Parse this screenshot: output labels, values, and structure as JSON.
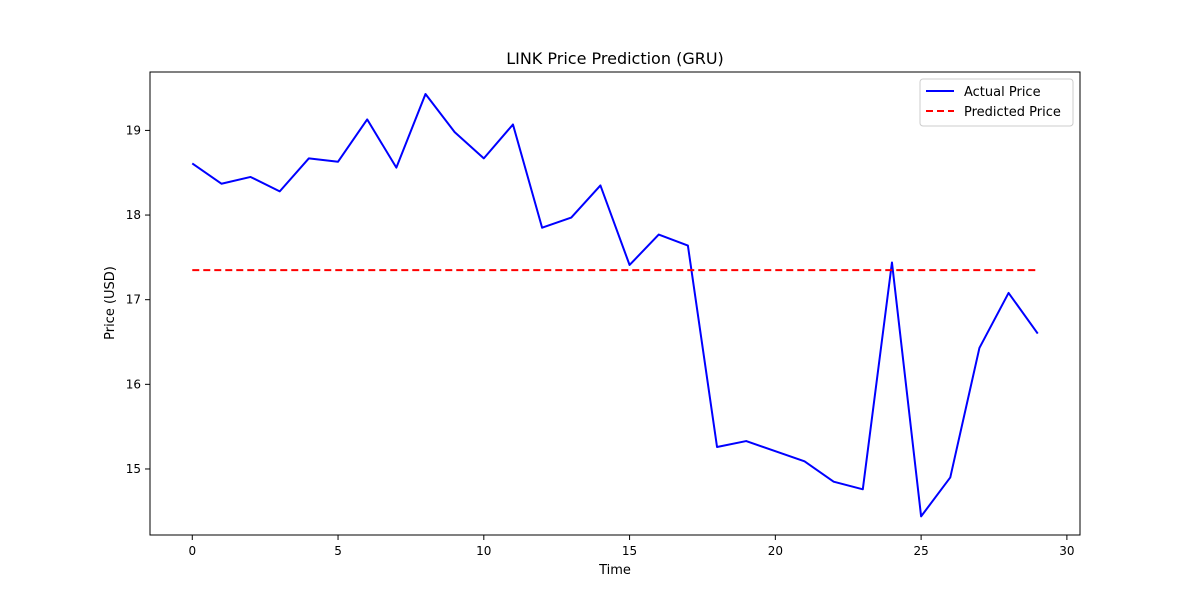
{
  "chart_data": {
    "type": "line",
    "title": "LINK Price Prediction (GRU)",
    "xlabel": "Time",
    "ylabel": "Price (USD)",
    "xlim": [
      -1.45,
      30.45
    ],
    "ylim": [
      14.22,
      19.69
    ],
    "xticks": [
      0,
      5,
      10,
      15,
      20,
      25,
      30
    ],
    "yticks": [
      15,
      16,
      17,
      18,
      19
    ],
    "grid": false,
    "legend_position": "top-right",
    "series": [
      {
        "name": "Actual Price",
        "color": "#0000ff",
        "style": "solid",
        "x": [
          0,
          1,
          2,
          3,
          4,
          5,
          6,
          7,
          8,
          9,
          10,
          11,
          12,
          13,
          14,
          15,
          16,
          17,
          18,
          19,
          20,
          21,
          22,
          23,
          24,
          25,
          26,
          27,
          28,
          29
        ],
        "values": [
          18.61,
          18.37,
          18.45,
          18.28,
          18.67,
          18.63,
          19.13,
          18.56,
          19.43,
          18.98,
          18.67,
          19.07,
          17.85,
          17.97,
          18.35,
          17.41,
          17.77,
          17.64,
          15.26,
          15.33,
          15.21,
          15.09,
          14.85,
          14.76,
          17.44,
          14.44,
          14.9,
          16.43,
          17.08,
          16.6
        ]
      },
      {
        "name": "Predicted Price",
        "color": "#ff0000",
        "style": "dashed",
        "x": [
          0,
          1,
          2,
          3,
          4,
          5,
          6,
          7,
          8,
          9,
          10,
          11,
          12,
          13,
          14,
          15,
          16,
          17,
          18,
          19,
          20,
          21,
          22,
          23,
          24,
          25,
          26,
          27,
          28,
          29
        ],
        "values": [
          17.35,
          17.35,
          17.35,
          17.35,
          17.35,
          17.35,
          17.35,
          17.35,
          17.35,
          17.35,
          17.35,
          17.35,
          17.35,
          17.35,
          17.35,
          17.35,
          17.35,
          17.35,
          17.35,
          17.35,
          17.35,
          17.35,
          17.35,
          17.35,
          17.35,
          17.35,
          17.35,
          17.35,
          17.35,
          17.35
        ]
      }
    ]
  }
}
